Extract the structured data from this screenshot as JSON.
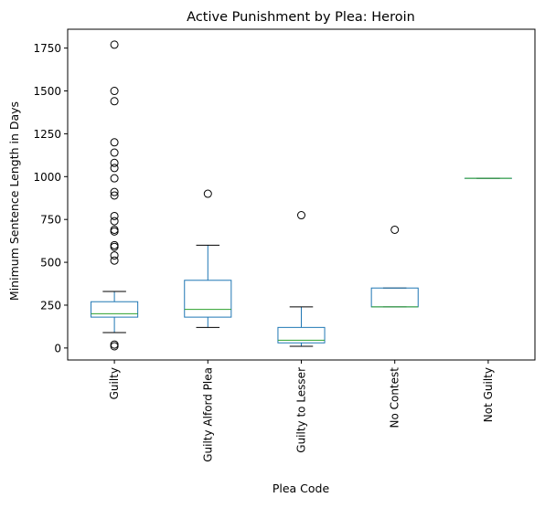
{
  "chart_data": {
    "type": "box",
    "title": "Active Punishment by Plea: Heroin",
    "xlabel": "Plea Code",
    "ylabel": "Minimum Sentence Length in Days",
    "ylim": [
      -70,
      1860
    ],
    "yticks": [
      0,
      250,
      500,
      750,
      1000,
      1250,
      1500,
      1750
    ],
    "grid": false,
    "colors": {
      "box": "#1f77b4",
      "median": "#2ca02c",
      "whisker": "#000000",
      "flier": "#000000"
    },
    "categories": [
      "Guilty",
      "Guilty Alford Plea",
      "Guilty to Lesser",
      "No Contest",
      "Not Guilty"
    ],
    "boxes": [
      {
        "name": "Guilty",
        "whislo": 90,
        "q1": 180,
        "med": 200,
        "q3": 270,
        "whishi": 330,
        "fliers": [
          10,
          20,
          510,
          540,
          590,
          600,
          680,
          690,
          740,
          770,
          890,
          910,
          990,
          1050,
          1080,
          1140,
          1200,
          1440,
          1500,
          1770
        ]
      },
      {
        "name": "Guilty Alford Plea",
        "whislo": 120,
        "q1": 180,
        "med": 225,
        "q3": 395,
        "whishi": 600,
        "fliers": [
          900
        ]
      },
      {
        "name": "Guilty to Lesser",
        "whislo": 10,
        "q1": 30,
        "med": 45,
        "q3": 120,
        "whishi": 240,
        "fliers": [
          775
        ]
      },
      {
        "name": "No Contest",
        "whislo": 240,
        "q1": 240,
        "med": 240,
        "q3": 350,
        "whishi": 350,
        "fliers": [
          690
        ]
      },
      {
        "name": "Not Guilty",
        "whislo": 990,
        "q1": 990,
        "med": 990,
        "q3": 990,
        "whishi": 990,
        "fliers": []
      }
    ]
  }
}
